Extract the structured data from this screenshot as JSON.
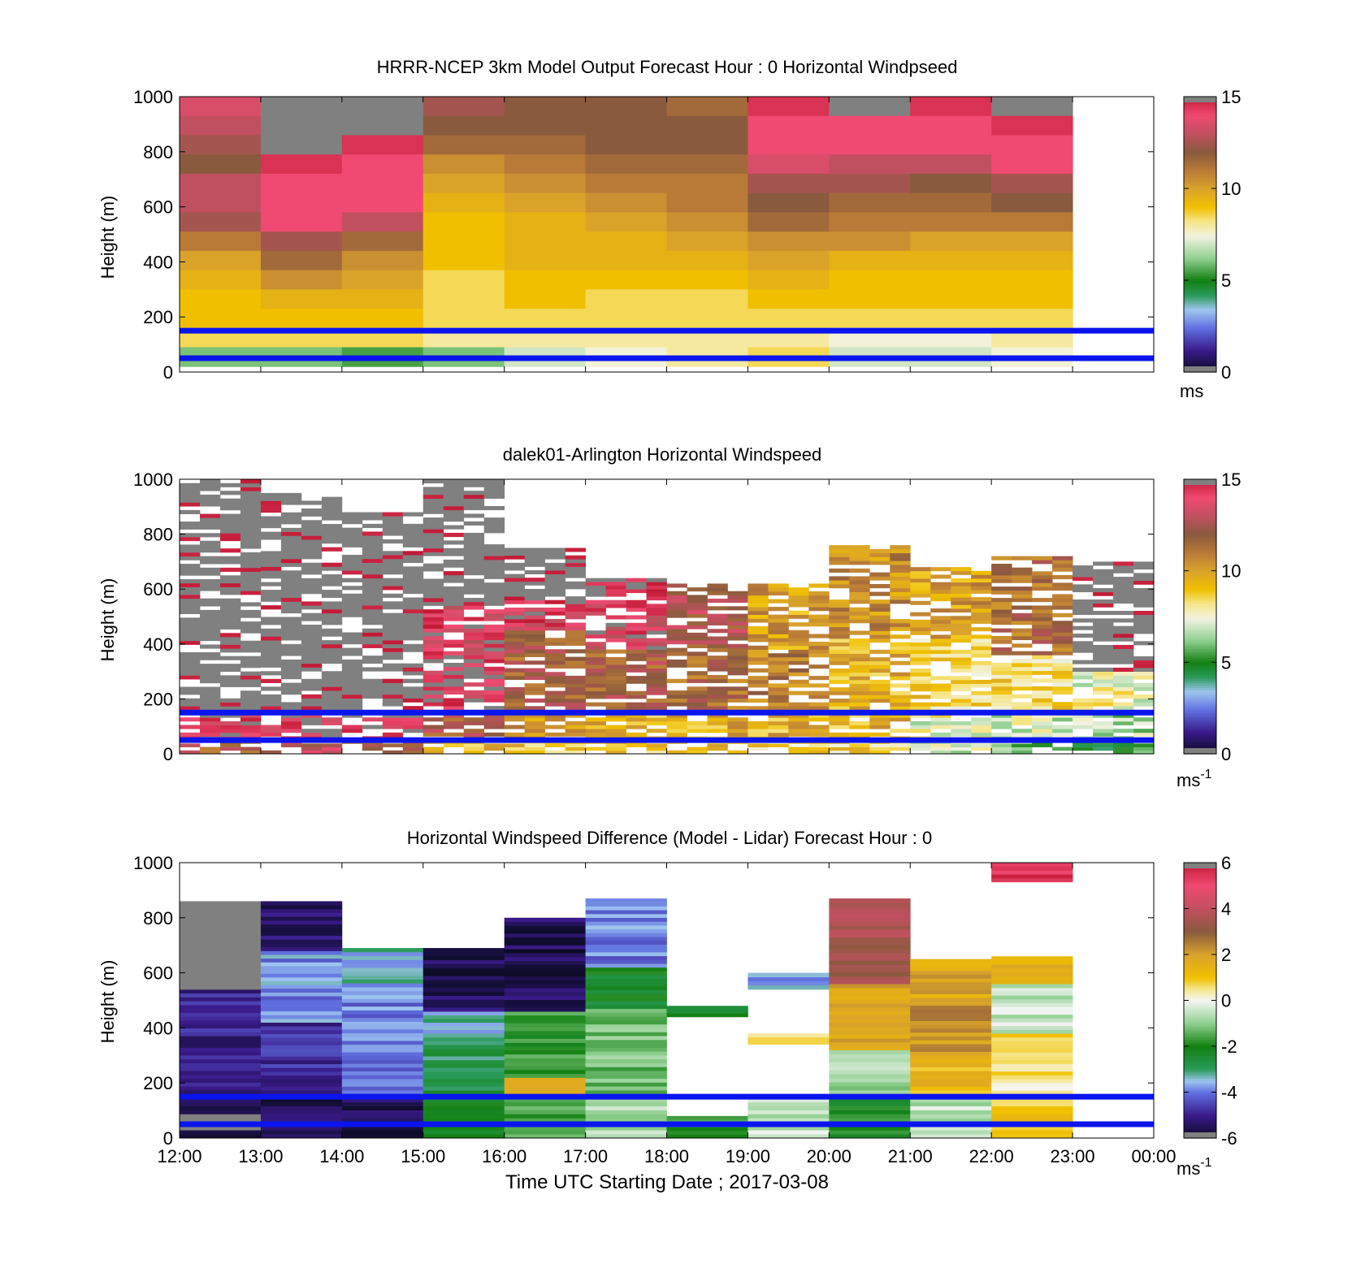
{
  "figure": {
    "xlabel": "Time UTC  Starting Date ; 2017-03-08",
    "x_tick_labels": [
      "12:00",
      "13:00",
      "14:00",
      "15:00",
      "16:00",
      "17:00",
      "18:00",
      "19:00",
      "20:00",
      "21:00",
      "22:00",
      "23:00",
      "00:00"
    ]
  },
  "chart_data": [
    {
      "type": "heatmap",
      "title": "HRRR-NCEP 3km Model Output   Forecast Hour : 0 Horizontal Windpseed",
      "xlabel": "",
      "ylabel": "Height (m)",
      "x_range": [
        "12:00",
        "00:00"
      ],
      "ylim": [
        0,
        1000
      ],
      "y_tick_labels": [
        "0",
        "200",
        "400",
        "600",
        "800",
        "1000"
      ],
      "colorbar": {
        "range": [
          0,
          15
        ],
        "tick_labels": [
          "0",
          "5",
          "10",
          "15"
        ],
        "unit": "ms",
        "unit_sup": ""
      },
      "hours": [
        "12:00",
        "13:00",
        "14:00",
        "15:00",
        "16:00",
        "17:00",
        "18:00",
        "19:00",
        "20:00",
        "21:00",
        "22:00"
      ],
      "reference_lines_m": [
        150,
        50
      ],
      "value_grid_ms": [
        [
          13.5,
          16,
          16,
          12.5,
          12,
          12,
          11.5,
          14.5,
          16,
          14.5,
          16
        ],
        [
          13,
          16,
          16,
          12,
          12,
          12,
          12,
          14,
          14,
          14,
          14.5
        ],
        [
          12.5,
          16,
          14.5,
          11.5,
          11.5,
          12,
          12,
          14,
          14,
          14,
          14
        ],
        [
          12,
          14.5,
          14,
          10.5,
          11,
          11.5,
          11.5,
          13.5,
          13,
          13,
          14
        ],
        [
          13,
          14,
          14,
          10,
          10.5,
          11,
          11,
          12.5,
          12.5,
          12,
          12.5
        ],
        [
          13,
          14,
          14,
          9.5,
          10,
          10.5,
          11,
          12,
          11.5,
          11.5,
          12
        ],
        [
          12.5,
          14,
          13,
          9,
          9.5,
          10,
          10.5,
          11.5,
          11,
          11,
          11
        ],
        [
          11,
          12.5,
          11.5,
          9,
          9.5,
          9.5,
          10,
          10.5,
          10.5,
          10,
          10
        ],
        [
          10,
          11.5,
          10.5,
          9,
          9.5,
          9.5,
          9.5,
          10,
          9.5,
          9.5,
          9.5
        ],
        [
          9.5,
          10.5,
          10,
          8.5,
          9,
          9,
          9,
          9.5,
          9,
          9,
          9
        ],
        [
          9,
          9.5,
          9.5,
          8.5,
          9,
          8.5,
          8.5,
          9,
          9,
          9,
          9
        ],
        [
          9,
          9,
          9,
          8.5,
          8.5,
          8.5,
          8.5,
          8.5,
          8.5,
          8.5,
          8.5
        ],
        [
          8.5,
          8.5,
          8.5,
          8,
          8,
          8,
          8,
          8,
          7.5,
          7.5,
          8
        ],
        [
          6,
          6,
          5.5,
          6,
          7,
          7.5,
          8,
          8.5,
          7,
          7,
          7.5
        ]
      ]
    },
    {
      "type": "heatmap",
      "title": "dalek01-Arlington  Horizontal Windspeed",
      "xlabel": "",
      "ylabel": "Height (m)",
      "x_range": [
        "12:00",
        "00:00"
      ],
      "ylim": [
        0,
        1000
      ],
      "y_tick_labels": [
        "0",
        "200",
        "400",
        "600",
        "800",
        "1000"
      ],
      "colorbar": {
        "range": [
          0,
          15
        ],
        "tick_labels": [
          "0",
          "5",
          "10",
          "15"
        ],
        "unit": "ms",
        "unit_sup": "-1"
      },
      "reference_lines_m": [
        150,
        50
      ],
      "value_profile_by_hour_ms": [
        {
          "hour": "12:00",
          "levels": [
            [
              0,
              50,
              12
            ],
            [
              50,
              160,
              14.5
            ],
            [
              160,
              1000,
              16
            ]
          ]
        },
        {
          "hour": "13:00",
          "levels": [
            [
              0,
              50,
              13
            ],
            [
              50,
              160,
              14.5
            ],
            [
              160,
              950,
              16
            ]
          ]
        },
        {
          "hour": "14:00",
          "levels": [
            [
              0,
              50,
              12.5
            ],
            [
              50,
              160,
              14.5
            ],
            [
              160,
              880,
              16
            ]
          ]
        },
        {
          "hour": "15:00",
          "levels": [
            [
              0,
              50,
              9.5
            ],
            [
              50,
              160,
              12
            ],
            [
              160,
              360,
              14.5
            ],
            [
              360,
              540,
              14
            ],
            [
              540,
              1000,
              16
            ]
          ]
        },
        {
          "hour": "16:00",
          "levels": [
            [
              0,
              50,
              9
            ],
            [
              50,
              160,
              10.5
            ],
            [
              160,
              450,
              12
            ],
            [
              450,
              560,
              14
            ],
            [
              560,
              750,
              16
            ]
          ]
        },
        {
          "hour": "17:00",
          "levels": [
            [
              0,
              50,
              9
            ],
            [
              50,
              160,
              9.5
            ],
            [
              160,
              380,
              12
            ],
            [
              380,
              560,
              14
            ],
            [
              560,
              640,
              15
            ]
          ]
        },
        {
          "hour": "18:00",
          "levels": [
            [
              0,
              50,
              9
            ],
            [
              50,
              160,
              9.5
            ],
            [
              160,
              400,
              11.5
            ],
            [
              400,
              620,
              12.5
            ]
          ]
        },
        {
          "hour": "19:00",
          "levels": [
            [
              0,
              50,
              8.5
            ],
            [
              50,
              160,
              9.5
            ],
            [
              160,
              380,
              11
            ],
            [
              380,
              620,
              10
            ]
          ]
        },
        {
          "hour": "20:00",
          "levels": [
            [
              0,
              50,
              8.5
            ],
            [
              50,
              160,
              9.5
            ],
            [
              160,
              420,
              9.5
            ],
            [
              420,
              760,
              10.5
            ]
          ]
        },
        {
          "hour": "21:00",
          "levels": [
            [
              0,
              50,
              7
            ],
            [
              50,
              160,
              7.5
            ],
            [
              160,
              420,
              8.5
            ],
            [
              420,
              680,
              10
            ]
          ]
        },
        {
          "hour": "22:00",
          "levels": [
            [
              0,
              50,
              6
            ],
            [
              50,
              160,
              7
            ],
            [
              160,
              360,
              8.5
            ],
            [
              360,
              720,
              11.5
            ]
          ]
        },
        {
          "hour": "23:00",
          "levels": [
            [
              0,
              50,
              5
            ],
            [
              50,
              160,
              6.5
            ],
            [
              160,
              300,
              7.5
            ],
            [
              300,
              700,
              16
            ]
          ]
        }
      ]
    },
    {
      "type": "heatmap",
      "title": "Horizontal Windspeed Difference (Model - Lidar) Forecast Hour : 0",
      "xlabel": "Time UTC  Starting Date ; 2017-03-08",
      "ylabel": "Height (m)",
      "x_range": [
        "12:00",
        "00:00"
      ],
      "ylim": [
        0,
        1000
      ],
      "y_tick_labels": [
        "0",
        "200",
        "400",
        "600",
        "800",
        "1000"
      ],
      "colorbar": {
        "range": [
          -6,
          6
        ],
        "tick_labels": [
          "-6",
          "-4",
          "-2",
          "0",
          "2",
          "4",
          "6"
        ],
        "unit": "ms",
        "unit_sup": "-1"
      },
      "reference_lines_m": [
        150,
        50
      ],
      "value_profile_by_hour_ms": [
        {
          "hour": "12:00",
          "levels": [
            [
              0,
              160,
              -5.8
            ],
            [
              160,
              540,
              -5
            ],
            [
              540,
              860,
              -6.5
            ]
          ]
        },
        {
          "hour": "13:00",
          "levels": [
            [
              0,
              160,
              -5.5
            ],
            [
              160,
              420,
              -4.8
            ],
            [
              420,
              680,
              -3.8
            ],
            [
              680,
              860,
              -5.3
            ]
          ]
        },
        {
          "hour": "14:00",
          "levels": [
            [
              0,
              160,
              -5.5
            ],
            [
              160,
              520,
              -4
            ],
            [
              520,
              690,
              -3.5
            ]
          ]
        },
        {
          "hour": "15:00",
          "levels": [
            [
              0,
              160,
              -2
            ],
            [
              160,
              380,
              -2.8
            ],
            [
              380,
              460,
              -3.3
            ],
            [
              460,
              690,
              -5.5
            ]
          ]
        },
        {
          "hour": "16:00",
          "levels": [
            [
              0,
              160,
              -1.5
            ],
            [
              160,
              220,
              1.5
            ],
            [
              220,
              460,
              -1.8
            ],
            [
              460,
              800,
              -5.5
            ]
          ]
        },
        {
          "hour": "17:00",
          "levels": [
            [
              0,
              160,
              -0.8
            ],
            [
              160,
              470,
              -1.2
            ],
            [
              470,
              620,
              -2.3
            ],
            [
              620,
              870,
              -4
            ]
          ]
        },
        {
          "hour": "18:00",
          "levels": [
            [
              0,
              80,
              -1.8
            ],
            [
              440,
              480,
              -2.2
            ]
          ]
        },
        {
          "hour": "19:00",
          "levels": [
            [
              0,
              160,
              -0.5
            ],
            [
              340,
              380,
              0.8
            ],
            [
              540,
              600,
              -3.5
            ]
          ]
        },
        {
          "hour": "20:00",
          "levels": [
            [
              0,
              160,
              -2
            ],
            [
              160,
              320,
              -0.8
            ],
            [
              320,
              560,
              1.8
            ],
            [
              560,
              870,
              3.5
            ]
          ]
        },
        {
          "hour": "21:00",
          "levels": [
            [
              0,
              160,
              -0.6
            ],
            [
              160,
              300,
              1.2
            ],
            [
              300,
              510,
              2.2
            ],
            [
              510,
              650,
              1.8
            ]
          ]
        },
        {
          "hour": "22:00",
          "levels": [
            [
              0,
              160,
              1
            ],
            [
              160,
              380,
              0.5
            ],
            [
              380,
              560,
              -0.5
            ],
            [
              560,
              660,
              1.5
            ],
            [
              930,
              1000,
              5.5
            ]
          ]
        }
      ]
    }
  ]
}
